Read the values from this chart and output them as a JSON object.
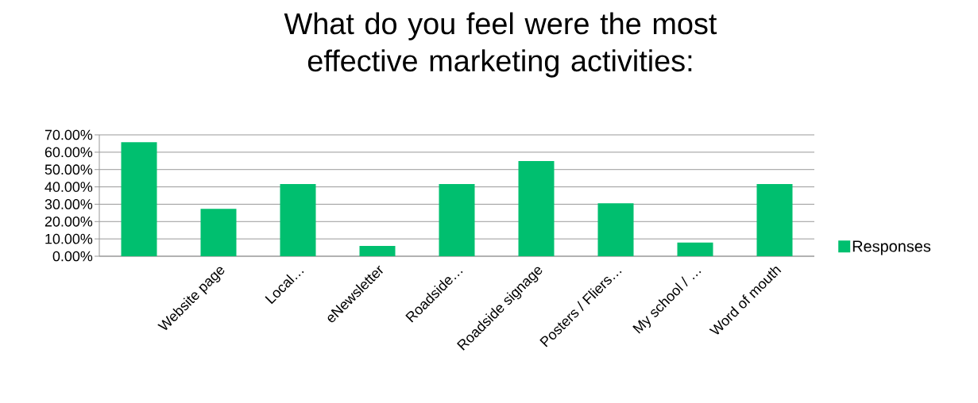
{
  "chart_data": {
    "type": "bar",
    "title": "What do you feel were the most effective marketing activities:",
    "categories": [
      null,
      "Website page",
      "Local…",
      "eNewsletter",
      "Roadside…",
      "Roadside signage",
      "Posters / Fliers…",
      "My school / …",
      "Word of mouth"
    ],
    "series": [
      {
        "name": "Responses",
        "color": "#00bf6f",
        "values": [
          65.8,
          27.3,
          41.6,
          6.0,
          41.6,
          54.9,
          30.5,
          7.9,
          41.6
        ]
      }
    ],
    "ylim": [
      0,
      70
    ],
    "yticks": [
      {
        "value": 0,
        "label": "0.00%"
      },
      {
        "value": 10,
        "label": "10.00%"
      },
      {
        "value": 20,
        "label": "20.00%"
      },
      {
        "value": 30,
        "label": "30.00%"
      },
      {
        "value": 40,
        "label": "40.00%"
      },
      {
        "value": 50,
        "label": "50.00%"
      },
      {
        "value": 60,
        "label": "60.00%"
      },
      {
        "value": 70,
        "label": "70.00%"
      }
    ],
    "grid": "y",
    "legend": "right"
  }
}
